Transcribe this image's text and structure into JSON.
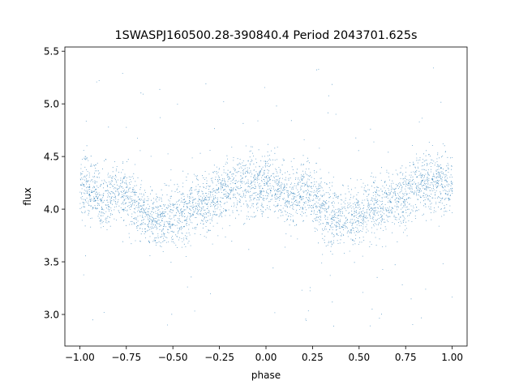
{
  "chart_data": {
    "type": "scatter",
    "title": "1SWASPJ160500.28-390840.4 Period 2043701.625s",
    "xlabel": "phase",
    "ylabel": "flux",
    "xlim": [
      -1.08,
      1.08
    ],
    "ylim": [
      2.7,
      5.54
    ],
    "xticks": [
      -1.0,
      -0.75,
      -0.5,
      -0.25,
      0.0,
      0.25,
      0.5,
      0.75,
      1.0
    ],
    "xtick_labels": [
      "−1.00",
      "−0.75",
      "−0.50",
      "−0.25",
      "0.00",
      "0.25",
      "0.50",
      "0.75",
      "1.00"
    ],
    "yticks": [
      3.0,
      3.5,
      4.0,
      4.5,
      5.0,
      5.5
    ],
    "ytick_labels": [
      "3.0",
      "3.5",
      "4.0",
      "4.5",
      "5.0",
      "5.5"
    ],
    "grid": false,
    "marker_color": "#1f77b4",
    "series": [
      {
        "mean_profile": {
          "phase": [
            0.0,
            0.05,
            0.1,
            0.15,
            0.2,
            0.25,
            0.3,
            0.35,
            0.4,
            0.45,
            0.5,
            0.55,
            0.6,
            0.65,
            0.7,
            0.75,
            0.8,
            0.85,
            0.9,
            0.95,
            1.0
          ],
          "flux": [
            4.22,
            4.2,
            4.12,
            4.1,
            4.18,
            4.14,
            4.05,
            3.95,
            3.92,
            3.9,
            3.92,
            3.98,
            4.02,
            4.06,
            4.1,
            4.12,
            4.2,
            4.24,
            4.25,
            4.24,
            4.22
          ]
        },
        "scatter_sd": 0.14,
        "outlier_range": [
          2.85,
          5.35
        ],
        "n_points": 11000
      }
    ]
  }
}
